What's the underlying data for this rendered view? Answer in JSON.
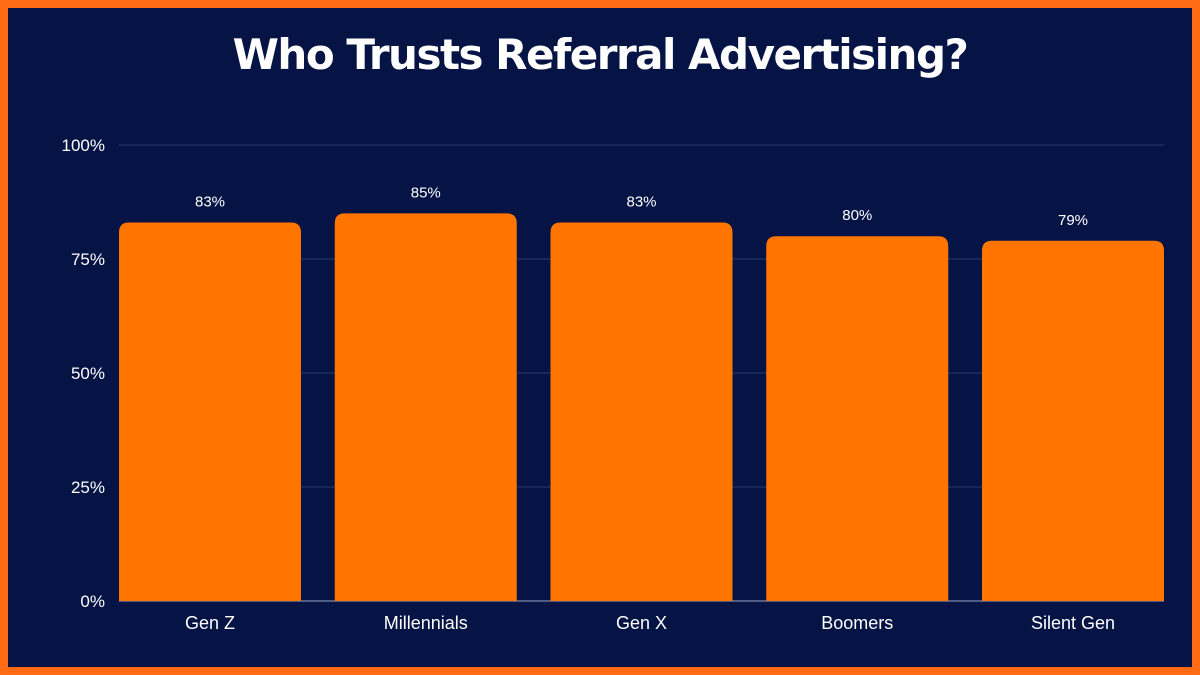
{
  "chart_data": {
    "type": "bar",
    "title": "Who Trusts Referral Advertising?",
    "categories": [
      "Gen Z",
      "Millennials",
      "Gen X",
      "Boomers",
      "Silent Gen"
    ],
    "values": [
      83,
      85,
      83,
      80,
      79
    ],
    "data_labels": [
      "83%",
      "85%",
      "83%",
      "80%",
      "79%"
    ],
    "ylim": [
      0,
      100
    ],
    "y_ticks": [
      0,
      25,
      50,
      75,
      100
    ],
    "y_tick_labels": [
      "0%",
      "25%",
      "50%",
      "75%",
      "100%"
    ],
    "grid": true,
    "colors": {
      "background": "#051445",
      "border": "#ff6a13",
      "bar": "#ff7500",
      "grid": "#2c3a66",
      "text": "#ffffff"
    }
  }
}
